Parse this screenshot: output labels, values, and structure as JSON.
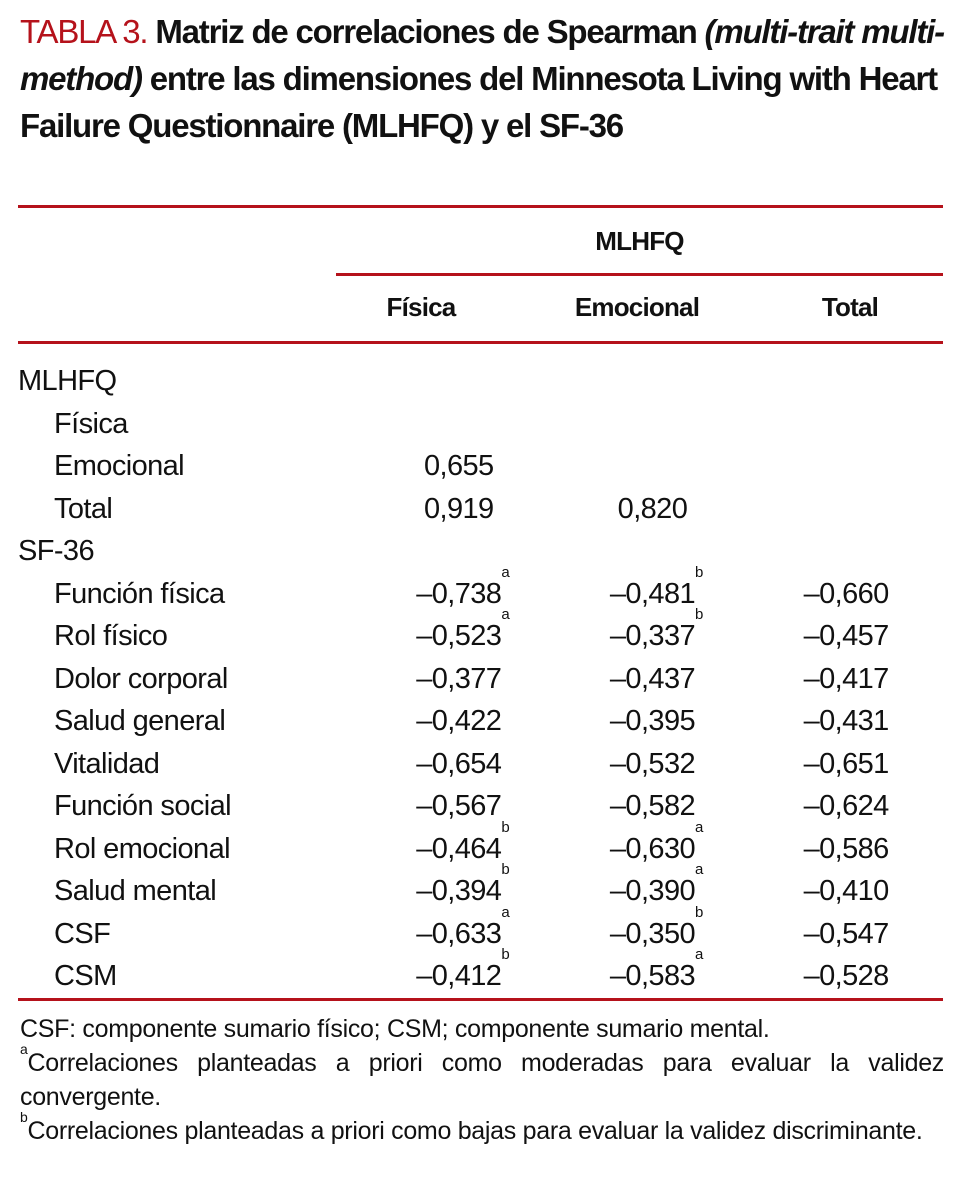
{
  "title": {
    "label": "TABLA 3.",
    "text_1": "Matriz de correlaciones de Spearman",
    "italic": "(multi-trait multi-method)",
    "text_2": "entre las dimensiones del Minnesota Living with Heart Failure Questionnaire (MLHFQ) y el SF-36"
  },
  "header": {
    "group": "MLHFQ",
    "columns": [
      "Física",
      "Emocional",
      "Total"
    ]
  },
  "rows": [
    {
      "label": "MLHFQ",
      "section": true,
      "values": []
    },
    {
      "label": "Física",
      "values": []
    },
    {
      "label": "Emocional",
      "values": [
        {
          "v": "0,655",
          "s": ""
        }
      ]
    },
    {
      "label": "Total",
      "values": [
        {
          "v": "0,919",
          "s": ""
        },
        {
          "v": "0,820",
          "s": ""
        }
      ]
    },
    {
      "label": "SF-36",
      "section": true,
      "values": []
    },
    {
      "label": "Función física",
      "values": [
        {
          "v": "–0,738",
          "s": "a"
        },
        {
          "v": "–0,481",
          "s": "b"
        },
        {
          "v": "–0,660",
          "s": ""
        }
      ]
    },
    {
      "label": "Rol físico",
      "values": [
        {
          "v": "–0,523",
          "s": "a"
        },
        {
          "v": "–0,337",
          "s": "b"
        },
        {
          "v": "–0,457",
          "s": ""
        }
      ]
    },
    {
      "label": "Dolor corporal",
      "values": [
        {
          "v": "–0,377",
          "s": ""
        },
        {
          "v": "–0,437",
          "s": ""
        },
        {
          "v": "–0,417",
          "s": ""
        }
      ]
    },
    {
      "label": "Salud general",
      "values": [
        {
          "v": "–0,422",
          "s": ""
        },
        {
          "v": "–0,395",
          "s": ""
        },
        {
          "v": "–0,431",
          "s": ""
        }
      ]
    },
    {
      "label": "Vitalidad",
      "values": [
        {
          "v": "–0,654",
          "s": ""
        },
        {
          "v": "–0,532",
          "s": ""
        },
        {
          "v": "–0,651",
          "s": ""
        }
      ]
    },
    {
      "label": "Función social",
      "values": [
        {
          "v": "–0,567",
          "s": ""
        },
        {
          "v": "–0,582",
          "s": ""
        },
        {
          "v": "–0,624",
          "s": ""
        }
      ]
    },
    {
      "label": "Rol emocional",
      "values": [
        {
          "v": "–0,464",
          "s": "b"
        },
        {
          "v": "–0,630",
          "s": "a"
        },
        {
          "v": "–0,586",
          "s": ""
        }
      ]
    },
    {
      "label": "Salud mental",
      "values": [
        {
          "v": "–0,394",
          "s": "b"
        },
        {
          "v": "–0,390",
          "s": "a"
        },
        {
          "v": "–0,410",
          "s": ""
        }
      ]
    },
    {
      "label": "CSF",
      "values": [
        {
          "v": "–0,633",
          "s": "a"
        },
        {
          "v": "–0,350",
          "s": "b"
        },
        {
          "v": "–0,547",
          "s": ""
        }
      ]
    },
    {
      "label": "CSM",
      "values": [
        {
          "v": "–0,412",
          "s": "b"
        },
        {
          "v": "–0,583",
          "s": "a"
        },
        {
          "v": "–0,528",
          "s": ""
        }
      ]
    }
  ],
  "notes": {
    "abbrev": "CSF: componente sumario físico; CSM; componente sumario mental.",
    "a_mark": "a",
    "a_text": "Correlaciones planteadas a priori como moderadas para evaluar la validez convergente.",
    "b_mark": "b",
    "b_text": "Correlaciones planteadas a priori como bajas para evaluar la validez discriminante."
  },
  "colors": {
    "accent": "#b5121b"
  }
}
